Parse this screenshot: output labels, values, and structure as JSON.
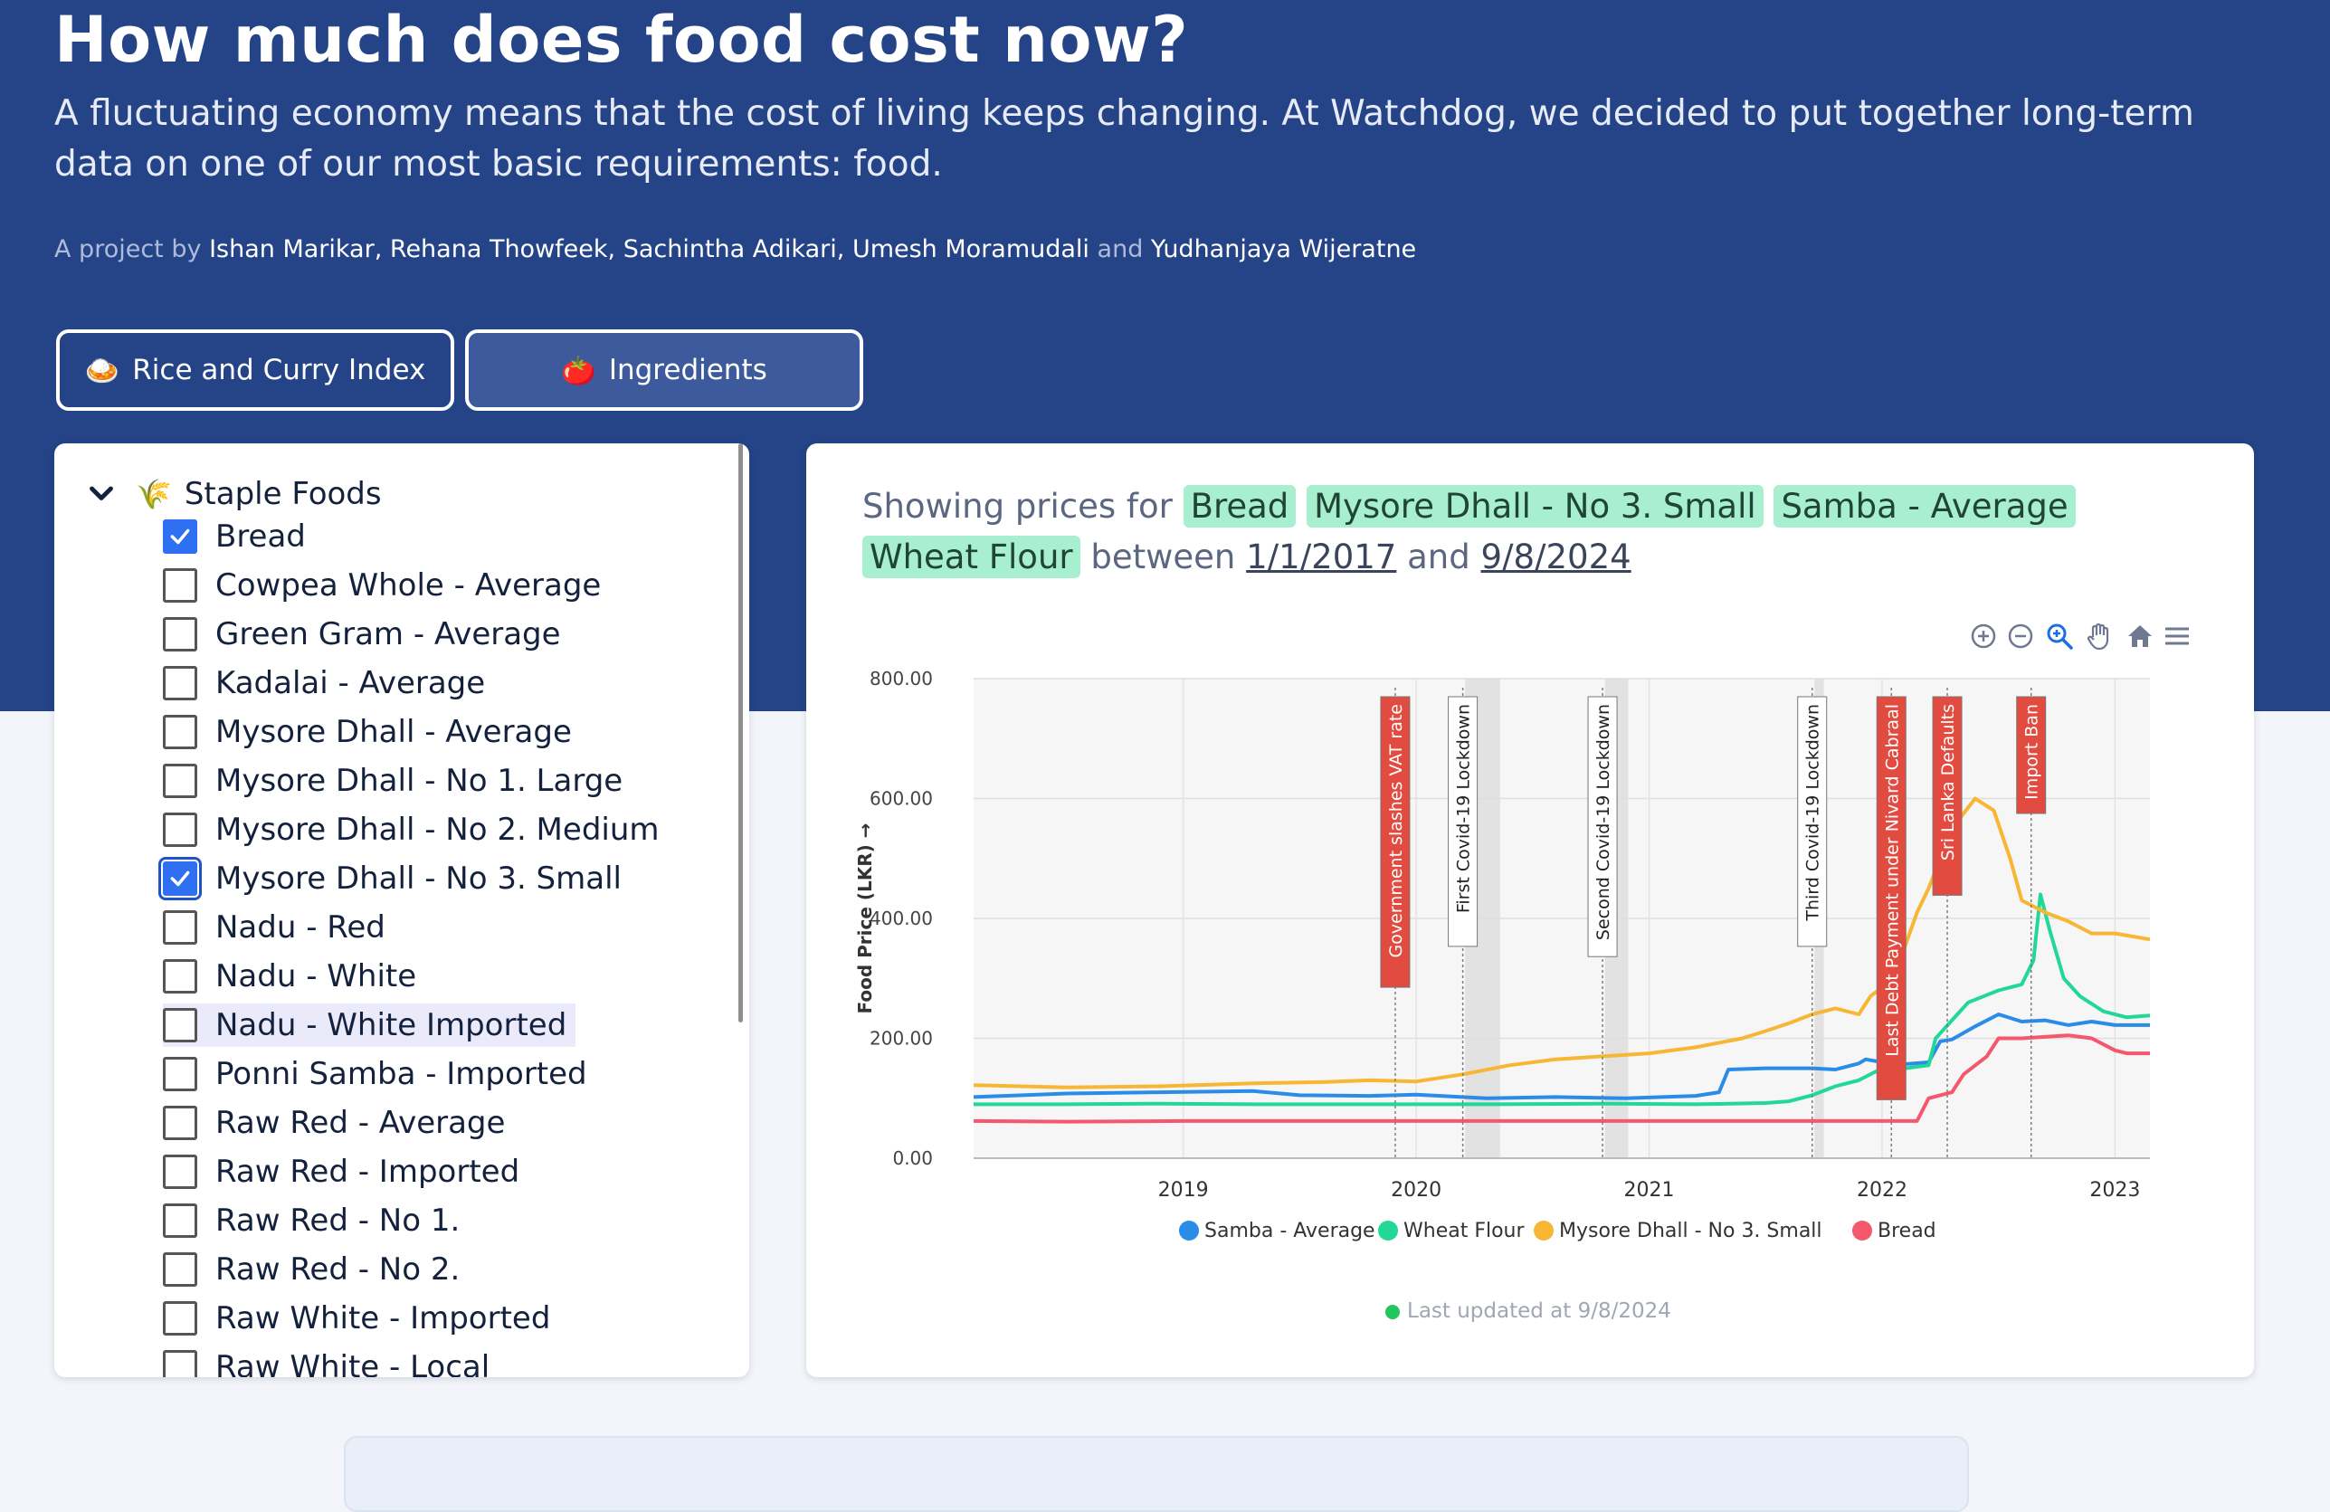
{
  "header": {
    "title": "How much does food cost now?",
    "subtitle": "A fluctuating economy means that the cost of living keeps changing. At Watchdog, we decided to put together long-term data on one of our most basic requirements: food.",
    "credits_prefix": "A project by",
    "authors": [
      "Ishan Marikar",
      "Rehana Thowfeek",
      "Sachintha Adikari",
      "Umesh Moramudali",
      "Yudhanjaya Wijeratne"
    ],
    "sep_comma": ",",
    "sep_and": "and"
  },
  "tabs": [
    {
      "label": "Rice and Curry Index",
      "icon": "🍛",
      "icon_name": "rice-curry-icon"
    },
    {
      "label": "Ingredients",
      "icon": "🍅",
      "icon_name": "tomato-icon"
    }
  ],
  "sidebar": {
    "group": {
      "label": "Staple Foods",
      "icon": "🌾"
    },
    "items": [
      {
        "label": "Bread",
        "checked": true
      },
      {
        "label": "Cowpea Whole - Average",
        "checked": false
      },
      {
        "label": "Green Gram - Average",
        "checked": false
      },
      {
        "label": "Kadalai - Average",
        "checked": false
      },
      {
        "label": "Mysore Dhall - Average",
        "checked": false
      },
      {
        "label": "Mysore Dhall - No 1. Large",
        "checked": false
      },
      {
        "label": "Mysore Dhall - No 2. Medium",
        "checked": false
      },
      {
        "label": "Mysore Dhall - No 3. Small",
        "checked": true
      },
      {
        "label": "Nadu - Red",
        "checked": false
      },
      {
        "label": "Nadu - White",
        "checked": false
      },
      {
        "label": "Nadu - White Imported",
        "checked": false
      },
      {
        "label": "Ponni Samba - Imported",
        "checked": false
      },
      {
        "label": "Raw Red - Average",
        "checked": false
      },
      {
        "label": "Raw Red - Imported",
        "checked": false
      },
      {
        "label": "Raw Red - No 1.",
        "checked": false
      },
      {
        "label": "Raw Red - No 2.",
        "checked": false
      },
      {
        "label": "Raw White - Imported",
        "checked": false
      },
      {
        "label": "Raw White - Local",
        "checked": false
      }
    ]
  },
  "showing": {
    "prefix": "Showing prices for",
    "selected": [
      "Bread",
      "Mysore Dhall - No 3. Small",
      "Samba - Average",
      "Wheat Flour"
    ],
    "between": "between",
    "start": "1/1/2017",
    "and": "and",
    "end": "9/8/2024"
  },
  "toolbar": [
    "zoom-in-icon",
    "zoom-out-icon",
    "selection-zoom-icon",
    "pan-hand-icon",
    "reset-home-icon",
    "menu-icon"
  ],
  "chart_data": {
    "type": "line",
    "ylabel": "Food Price (LKR) →",
    "ylim": [
      0,
      800
    ],
    "y_ticks": [
      "0.00",
      "200.00",
      "400.00",
      "600.00",
      "800.00"
    ],
    "x_range": [
      2018.1,
      2023.15
    ],
    "x_ticks": [
      "2019",
      "2020",
      "2021",
      "2022",
      "2023"
    ],
    "grid": true,
    "legend_position": "bottom",
    "series": [
      {
        "name": "Samba - Average",
        "color": "#2b8ce8",
        "x": [
          2018.1,
          2018.5,
          2018.9,
          2019.3,
          2019.5,
          2019.8,
          2020.0,
          2020.3,
          2020.6,
          2020.9,
          2021.2,
          2021.3,
          2021.34,
          2021.5,
          2021.7,
          2021.8,
          2021.9,
          2021.93,
          2022.0,
          2022.1,
          2022.2,
          2022.25,
          2022.3,
          2022.4,
          2022.5,
          2022.6,
          2022.7,
          2022.8,
          2022.9,
          2023.0,
          2023.15
        ],
        "y": [
          102,
          108,
          110,
          112,
          105,
          104,
          106,
          100,
          102,
          100,
          104,
          110,
          148,
          150,
          150,
          148,
          158,
          165,
          160,
          157,
          160,
          195,
          198,
          220,
          240,
          228,
          230,
          222,
          228,
          222,
          222
        ]
      },
      {
        "name": "Wheat Flour",
        "color": "#22d896",
        "x": [
          2018.1,
          2018.5,
          2018.9,
          2019.3,
          2019.8,
          2020.3,
          2020.8,
          2021.2,
          2021.5,
          2021.6,
          2021.7,
          2021.8,
          2021.9,
          2022.0,
          2022.1,
          2022.2,
          2022.23,
          2022.3,
          2022.37,
          2022.5,
          2022.6,
          2022.65,
          2022.68,
          2022.72,
          2022.78,
          2022.85,
          2022.95,
          2023.05,
          2023.15
        ],
        "y": [
          90,
          90,
          91,
          90,
          90,
          90,
          91,
          90,
          92,
          95,
          105,
          120,
          130,
          150,
          150,
          155,
          200,
          230,
          260,
          280,
          290,
          330,
          440,
          380,
          300,
          270,
          245,
          235,
          238
        ]
      },
      {
        "name": "Mysore Dhall - No 3. Small",
        "color": "#f7b634",
        "x": [
          2018.1,
          2018.5,
          2018.9,
          2019.3,
          2019.6,
          2019.8,
          2020.0,
          2020.2,
          2020.4,
          2020.6,
          2020.8,
          2021.0,
          2021.2,
          2021.4,
          2021.5,
          2021.6,
          2021.7,
          2021.8,
          2021.9,
          2021.95,
          2022.05,
          2022.15,
          2022.2,
          2022.3,
          2022.4,
          2022.48,
          2022.55,
          2022.6,
          2022.7,
          2022.8,
          2022.9,
          2023.0,
          2023.15
        ],
        "y": [
          122,
          118,
          120,
          125,
          127,
          130,
          128,
          140,
          155,
          165,
          170,
          175,
          185,
          200,
          212,
          225,
          240,
          250,
          240,
          270,
          300,
          410,
          450,
          550,
          600,
          580,
          500,
          430,
          410,
          395,
          375,
          375,
          365
        ]
      },
      {
        "name": "Bread",
        "color": "#f5576c",
        "x": [
          2018.1,
          2018.5,
          2019.0,
          2019.5,
          2020.0,
          2020.5,
          2021.0,
          2021.5,
          2021.8,
          2021.95,
          2022.0,
          2022.15,
          2022.2,
          2022.3,
          2022.35,
          2022.45,
          2022.5,
          2022.6,
          2022.8,
          2022.9,
          2023.0,
          2023.05,
          2023.15
        ],
        "y": [
          62,
          61,
          62,
          62,
          62,
          62,
          62,
          62,
          62,
          62,
          62,
          62,
          100,
          110,
          140,
          170,
          200,
          200,
          205,
          200,
          180,
          175,
          175
        ]
      }
    ],
    "event_markers": [
      {
        "x": 2019.91,
        "label": "Government slashes VAT rate",
        "color": "#e24b3f",
        "text_color": "#ffffff"
      },
      {
        "x": 2020.2,
        "label": "First Covid-19 Lockdown",
        "color": "#ffffff",
        "text_color": "#222222"
      },
      {
        "x": 2020.8,
        "label": "Second Covid-19 Lockdown",
        "color": "#ffffff",
        "text_color": "#222222"
      },
      {
        "x": 2021.7,
        "label": "Third Covid-19 Lockdown",
        "color": "#ffffff",
        "text_color": "#222222"
      },
      {
        "x": 2022.04,
        "label": "Last Debt Payment under Nivard Cabraal",
        "color": "#e24b3f",
        "text_color": "#ffffff"
      },
      {
        "x": 2022.28,
        "label": "Sri Lanka Defaults",
        "color": "#e24b3f",
        "text_color": "#ffffff"
      },
      {
        "x": 2022.64,
        "label": "Import Ban",
        "color": "#e24b3f",
        "text_color": "#ffffff"
      }
    ],
    "shaded_bands": [
      [
        2020.21,
        2020.36
      ],
      [
        2020.81,
        2020.91
      ],
      [
        2021.71,
        2021.75
      ]
    ]
  },
  "footer": {
    "updated": "Last updated at 9/8/2024"
  }
}
